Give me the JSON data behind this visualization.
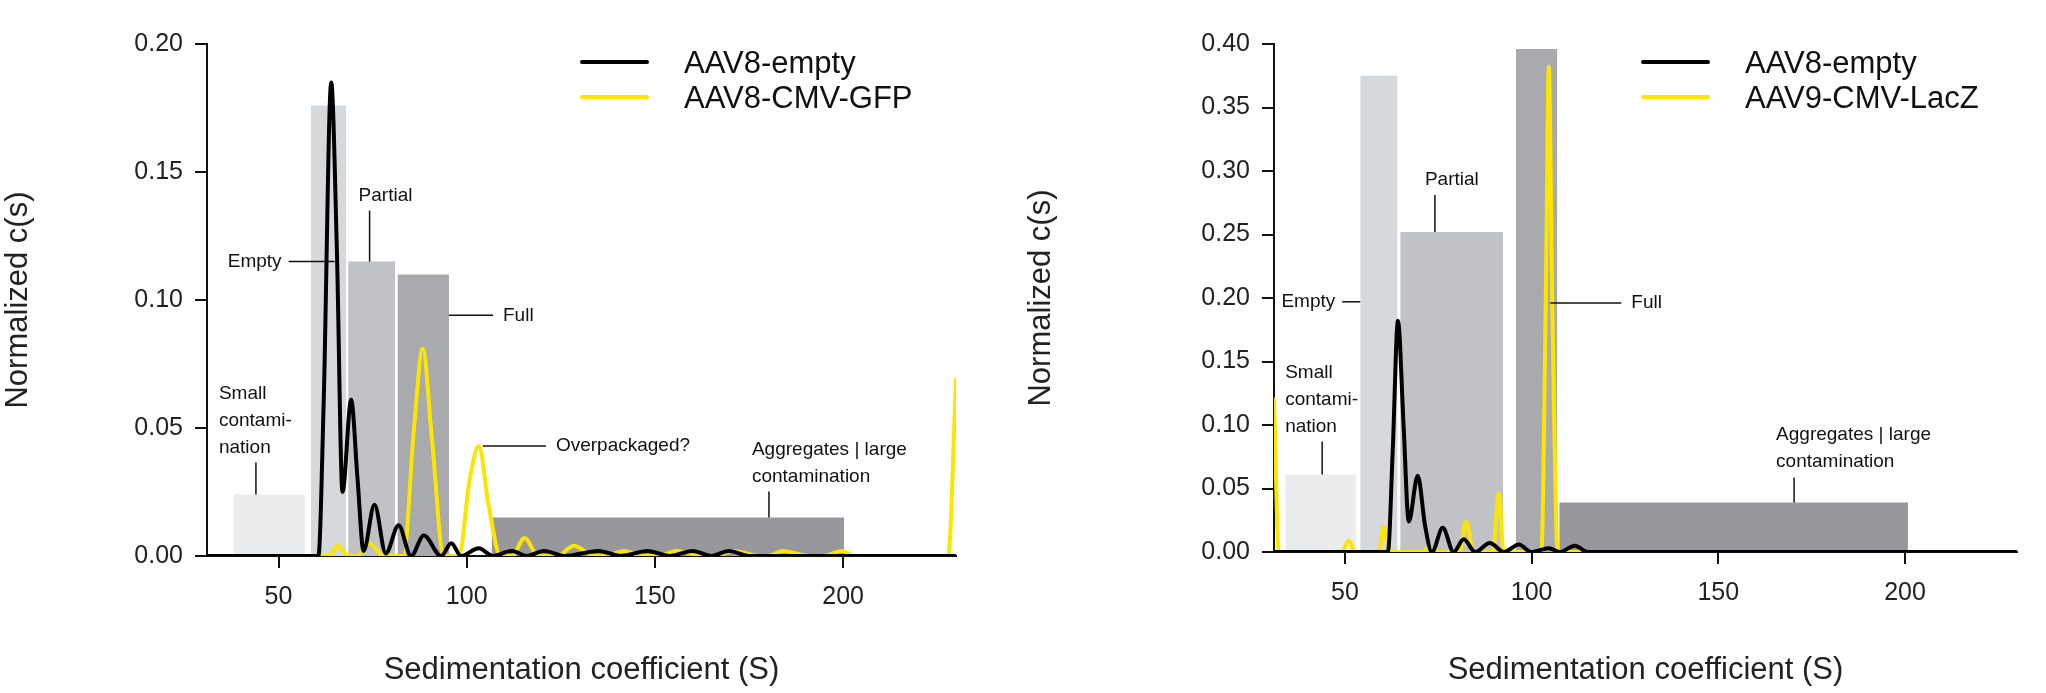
{
  "chart_data": [
    {
      "type": "line",
      "xlabel": "Sedimentation coefficient (S)",
      "ylabel": "Normalized c(s)",
      "xlim": [
        31,
        230
      ],
      "xticks": [
        50,
        100,
        150,
        200
      ],
      "ylim": [
        0,
        0.2
      ],
      "yticks": [
        {
          "value": 0,
          "label": "0.00"
        },
        {
          "value": 0.05,
          "label": "0.05"
        },
        {
          "value": 0.1,
          "label": "0.10"
        },
        {
          "value": 0.15,
          "label": "0.15"
        },
        {
          "value": 0.2,
          "label": "0.20"
        }
      ],
      "legend": "top right",
      "marker": "none",
      "series": [
        {
          "type": "area",
          "color": "#ebeced",
          "x": [
            38,
            57
          ],
          "values": [
            0.024,
            0.024
          ]
        },
        {
          "type": "area",
          "color": "#d6d9dc",
          "x": [
            58.6,
            68
          ],
          "values": [
            0.176,
            0.176
          ]
        },
        {
          "type": "area",
          "color": "#c1c2c5",
          "x": [
            68.5,
            81
          ],
          "values": [
            0.115,
            0.115
          ]
        },
        {
          "type": "area",
          "color": "#a9aaad",
          "x": [
            81.6,
            95.3
          ],
          "values": [
            0.11,
            0.11
          ]
        },
        {
          "type": "area",
          "color": "#98979c",
          "x": [
            106.6,
            200.3
          ],
          "values": [
            0.015,
            0.015
          ]
        },
        {
          "name": "AAV8-empty",
          "color": "#000000",
          "x": [
            31,
            58,
            60.6,
            62,
            64,
            65.5,
            67,
            69.3,
            71,
            72.6,
            75.5,
            78.5,
            81.9,
            85.2,
            88.6,
            93.2,
            95.9,
            98.5,
            103.2,
            107,
            112,
            116,
            120.5,
            126,
            135,
            141,
            148,
            154,
            160,
            165,
            169.7,
            175,
            230
          ],
          "values": [
            0,
            0,
            0,
            0.06,
            0.185,
            0.12,
            0.025,
            0.061,
            0.03,
            0.002,
            0.02,
            0.001,
            0.012,
            0,
            0.008,
            0,
            0.005,
            0,
            0.003,
            0,
            0.002,
            0,
            0.002,
            0,
            0.002,
            0,
            0.002,
            0,
            0.002,
            0,
            0.002,
            0,
            0
          ]
        },
        {
          "name": "AAV8-CMV-GFP",
          "color": "#fce600",
          "x": [
            31,
            63.3,
            65.7,
            68.6,
            71,
            74,
            78,
            83.2,
            86,
            88.3,
            90.8,
            93.9,
            97.9,
            100.8,
            103.2,
            105.8,
            109,
            112,
            115.4,
            119,
            124,
            128.5,
            133.8,
            137,
            141.8,
            147,
            151,
            155.7,
            163,
            166,
            171,
            177.7,
            180,
            184,
            191,
            195,
            199.6,
            203,
            227.9,
            230
          ],
          "values": [
            0,
            0,
            0.004,
            0,
            0,
            0.005,
            0,
            0,
            0.05,
            0.081,
            0.045,
            0,
            0,
            0.03,
            0.043,
            0.02,
            0,
            0,
            0.007,
            0,
            0,
            0.004,
            0,
            0,
            0.002,
            0,
            0,
            0.002,
            0,
            0,
            0.002,
            0,
            0,
            0.002,
            0,
            0,
            0.002,
            0,
            0,
            0.069
          ]
        }
      ],
      "annotations": [
        {
          "text": "Small\ncontami-\nnation",
          "x": 44,
          "y": 0.024
        },
        {
          "text": "Empty",
          "x": 64.9,
          "y": 0.115
        },
        {
          "text": "Partial",
          "x": 74.2,
          "y": 0.115
        },
        {
          "text": "Full",
          "x": 95.3,
          "y": 0.094
        },
        {
          "text": "Overpackaged?",
          "x": 104.3,
          "y": 0.043
        },
        {
          "text": "Aggregates | large\ncontamination",
          "x": 180.3,
          "y": 0.015
        }
      ]
    },
    {
      "type": "line",
      "xlabel": "Sedimentation coefficient (S)",
      "ylabel": "Normalized c(s)",
      "xlim": [
        31,
        230
      ],
      "xticks": [
        50,
        100,
        150,
        200
      ],
      "ylim": [
        0,
        0.4
      ],
      "yticks": [
        {
          "value": 0,
          "label": "0.00"
        },
        {
          "value": 0.05,
          "label": "0.05"
        },
        {
          "value": 0.1,
          "label": "0.10"
        },
        {
          "value": 0.15,
          "label": "0.15"
        },
        {
          "value": 0.2,
          "label": "0.20"
        },
        {
          "value": 0.25,
          "label": "0.25"
        },
        {
          "value": 0.3,
          "label": "0.30"
        },
        {
          "value": 0.35,
          "label": "0.35"
        },
        {
          "value": 0.4,
          "label": "0.40"
        }
      ],
      "legend": "top right",
      "marker": "none",
      "series": [
        {
          "type": "area",
          "color": "#ebeced",
          "x": [
            34,
            53
          ],
          "values": [
            0.061,
            0.061
          ]
        },
        {
          "type": "area",
          "color": "#d6d9dc",
          "x": [
            54.1,
            64.1
          ],
          "values": [
            0.375,
            0.375
          ]
        },
        {
          "type": "area",
          "color": "#c1c2c5",
          "x": [
            64.8,
            92.4
          ],
          "values": [
            0.252,
            0.252
          ]
        },
        {
          "type": "area",
          "color": "#a9aaad",
          "x": [
            95.8,
            106.9
          ],
          "values": [
            0.396,
            0.396
          ]
        },
        {
          "type": "area",
          "color": "#98979c",
          "x": [
            107.4,
            200.8
          ],
          "values": [
            0.039,
            0.039
          ]
        },
        {
          "name": "AAV8-empty",
          "color": "#000000",
          "x": [
            31,
            61.5,
            62.8,
            64.2,
            65.7,
            67.1,
            69.5,
            71.5,
            73.3,
            76.2,
            79.1,
            81.8,
            84.9,
            88.8,
            92.6,
            96.6,
            99.9,
            104.6,
            107.5,
            111.6,
            115,
            230
          ],
          "values": [
            0,
            0,
            0.08,
            0.182,
            0.1,
            0.024,
            0.06,
            0.02,
            0,
            0.019,
            0,
            0.01,
            0,
            0.007,
            0,
            0.006,
            0,
            0.003,
            0,
            0.005,
            0,
            0
          ]
        },
        {
          "name": "AAV9-CMV-LacZ",
          "color": "#fce600",
          "x": [
            31,
            32.3,
            49,
            51.1,
            52.7,
            59.1,
            60.4,
            62,
            71.1,
            72.4,
            74,
            80.7,
            82.4,
            84.5,
            89.6,
            91.2,
            92.5,
            102.6,
            103.8,
            104.6,
            105.5,
            107,
            230
          ],
          "values": [
            0.12,
            0,
            0,
            0.009,
            0,
            0,
            0.02,
            0,
            0,
            0.004,
            0,
            0,
            0.024,
            0,
            0,
            0.046,
            0,
            0,
            0.2,
            0.382,
            0.2,
            0,
            0
          ]
        }
      ],
      "annotations": [
        {
          "text": "Small\ncontami-\nnation",
          "x": 43.9,
          "y": 0.061
        },
        {
          "text": "Empty",
          "x": 54.1,
          "y": 0.197
        },
        {
          "text": "Partial",
          "x": 74.1,
          "y": 0.252
        },
        {
          "text": "Full",
          "x": 105,
          "y": 0.196
        },
        {
          "text": "Aggregates | large\ncontamination",
          "x": 170.3,
          "y": 0.039
        }
      ]
    }
  ]
}
